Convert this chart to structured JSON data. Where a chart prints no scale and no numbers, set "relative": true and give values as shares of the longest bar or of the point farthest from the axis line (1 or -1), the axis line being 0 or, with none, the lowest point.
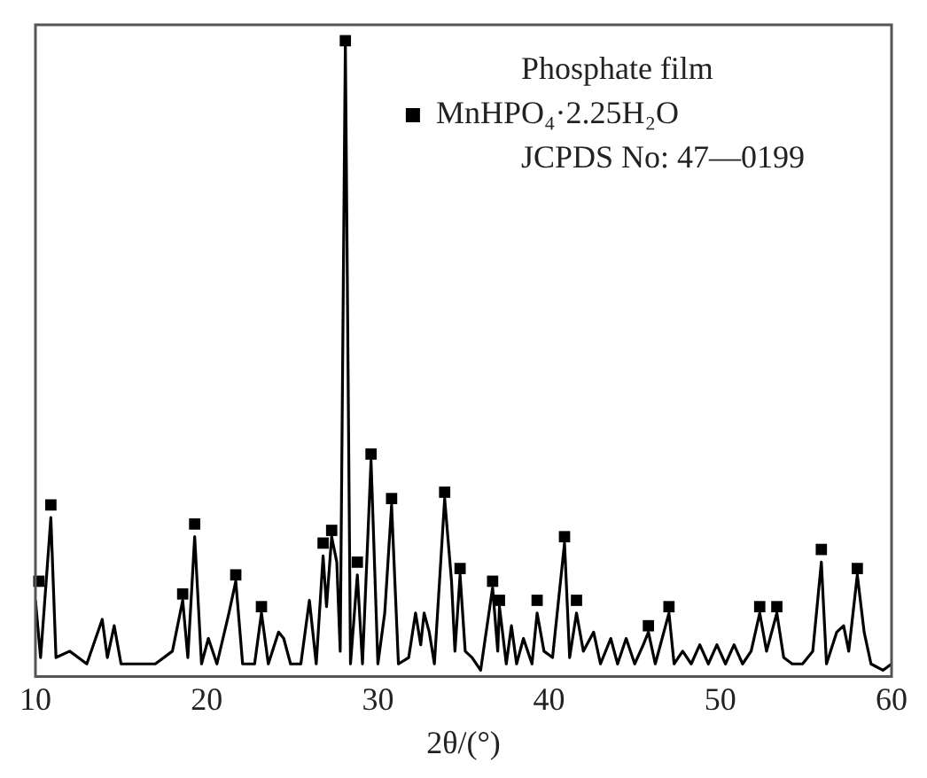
{
  "chart_data": {
    "type": "line",
    "relative": true,
    "xlabel": "2θ/(°)",
    "xlim": [
      10,
      60
    ],
    "xticks": [
      10,
      20,
      30,
      40,
      50,
      60
    ],
    "tick_labels": "x",
    "grid": false,
    "legend": "top right",
    "annotations": [
      "Phosphate film",
      "JCPDS No: 47—0199"
    ],
    "series": [
      {
        "type": "line",
        "color": "#000000",
        "marker": "none",
        "x": [
          10.0,
          10.3,
          10.9,
          11.2,
          12.0,
          13.0,
          13.9,
          14.2,
          14.6,
          15.0,
          16.0,
          17.0,
          18.0,
          18.6,
          18.9,
          19.3,
          19.7,
          20.1,
          20.6,
          21.3,
          21.7,
          22.1,
          22.8,
          23.2,
          23.6,
          24.2,
          24.5,
          24.9,
          25.5,
          26.0,
          26.4,
          26.8,
          27.0,
          27.3,
          27.6,
          27.8,
          28.1,
          28.4,
          28.8,
          29.1,
          29.6,
          30.0,
          30.4,
          30.8,
          31.2,
          31.8,
          32.2,
          32.5,
          32.7,
          33.0,
          33.3,
          33.9,
          34.3,
          34.5,
          34.8,
          35.1,
          35.5,
          36.0,
          36.7,
          37.0,
          37.1,
          37.5,
          37.8,
          38.1,
          38.5,
          39.0,
          39.3,
          39.7,
          40.2,
          40.9,
          41.2,
          41.6,
          42.0,
          42.6,
          43.0,
          43.6,
          44.0,
          44.5,
          45.0,
          45.5,
          45.8,
          46.2,
          47.0,
          47.3,
          47.8,
          48.3,
          48.8,
          49.3,
          49.8,
          50.3,
          50.8,
          51.3,
          51.8,
          52.3,
          52.7,
          53.3,
          53.7,
          54.2,
          54.8,
          55.4,
          55.9,
          56.2,
          56.8,
          57.2,
          57.5,
          58.0,
          58.4,
          58.8,
          59.5,
          60.0
        ],
        "values": [
          0.12,
          0.03,
          0.25,
          0.03,
          0.04,
          0.02,
          0.09,
          0.03,
          0.08,
          0.02,
          0.02,
          0.02,
          0.04,
          0.12,
          0.03,
          0.22,
          0.02,
          0.06,
          0.02,
          0.1,
          0.15,
          0.02,
          0.02,
          0.1,
          0.02,
          0.07,
          0.06,
          0.02,
          0.02,
          0.12,
          0.02,
          0.19,
          0.11,
          0.22,
          0.18,
          0.04,
          1.0,
          0.02,
          0.16,
          0.02,
          0.34,
          0.02,
          0.1,
          0.27,
          0.02,
          0.03,
          0.1,
          0.05,
          0.1,
          0.07,
          0.02,
          0.28,
          0.15,
          0.04,
          0.16,
          0.04,
          0.03,
          0.01,
          0.14,
          0.04,
          0.11,
          0.02,
          0.08,
          0.02,
          0.06,
          0.02,
          0.1,
          0.04,
          0.03,
          0.21,
          0.03,
          0.1,
          0.04,
          0.07,
          0.02,
          0.06,
          0.02,
          0.06,
          0.02,
          0.05,
          0.07,
          0.02,
          0.1,
          0.02,
          0.04,
          0.02,
          0.05,
          0.02,
          0.05,
          0.02,
          0.05,
          0.02,
          0.04,
          0.1,
          0.04,
          0.1,
          0.03,
          0.02,
          0.02,
          0.04,
          0.18,
          0.02,
          0.07,
          0.08,
          0.04,
          0.16,
          0.07,
          0.02,
          0.01,
          0.02
        ]
      },
      {
        "type": "scatter",
        "name": "MnHPO₄·2.25H₂O",
        "color": "#000000",
        "marker": "square",
        "x": [
          10.2,
          10.9,
          18.6,
          19.3,
          21.7,
          23.2,
          26.8,
          27.3,
          28.1,
          28.8,
          29.6,
          30.8,
          33.9,
          34.8,
          36.7,
          37.1,
          39.3,
          40.9,
          41.6,
          45.8,
          47.0,
          52.3,
          53.3,
          55.9,
          58.0
        ],
        "values": [
          0.15,
          0.27,
          0.13,
          0.24,
          0.16,
          0.11,
          0.21,
          0.23,
          1.0,
          0.18,
          0.35,
          0.28,
          0.29,
          0.17,
          0.15,
          0.12,
          0.12,
          0.22,
          0.12,
          0.08,
          0.11,
          0.11,
          0.11,
          0.2,
          0.17
        ]
      }
    ]
  }
}
